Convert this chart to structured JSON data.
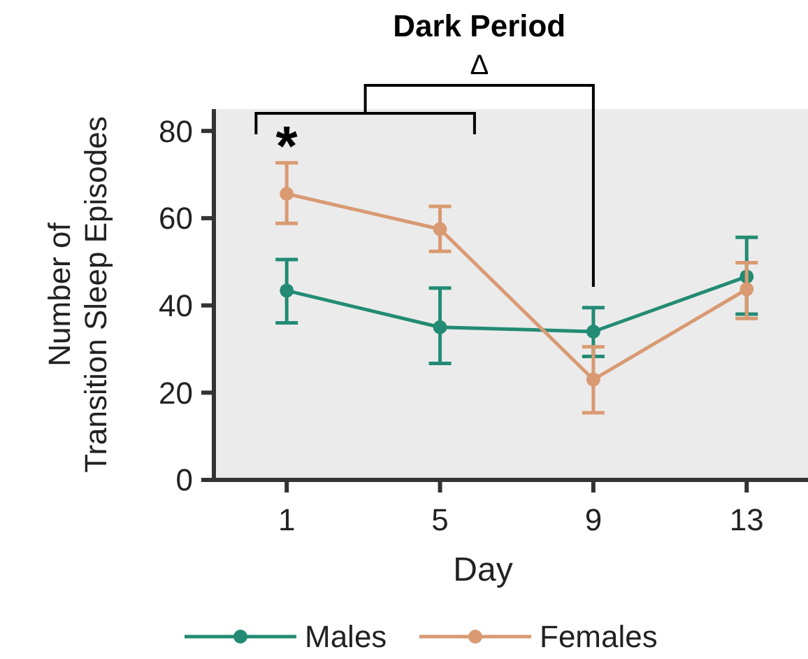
{
  "chart_data": {
    "type": "line",
    "title": "Dark Period",
    "xlabel": "Day",
    "ylabel": "Number of\nTransition Sleep Episodes",
    "x": [
      1,
      5,
      9,
      13
    ],
    "xlim": [
      -0.9,
      14.6
    ],
    "xticks": [
      1,
      5,
      9,
      13
    ],
    "ylim": [
      0,
      85
    ],
    "yticks": [
      0,
      20,
      40,
      60,
      80
    ],
    "grid": false,
    "legend": "bottom",
    "marker": "circle",
    "line_style": "solid",
    "series": [
      {
        "name": "Males",
        "color": "#238b74",
        "values": [
          43.4,
          35,
          34,
          46.6
        ],
        "errors": [
          [
            36,
            50.5
          ],
          [
            26.7,
            44
          ],
          [
            28.3,
            39.5
          ],
          [
            38,
            55.6
          ]
        ]
      },
      {
        "name": "Females",
        "color": "#d99a72",
        "values": [
          65.6,
          57.5,
          23,
          43.7
        ],
        "errors": [
          [
            58.8,
            72.7
          ],
          [
            52.4,
            62.7
          ],
          [
            15.4,
            30.5
          ],
          [
            37,
            49.8
          ]
        ]
      }
    ],
    "annotations": [
      "*",
      "Δ"
    ]
  }
}
